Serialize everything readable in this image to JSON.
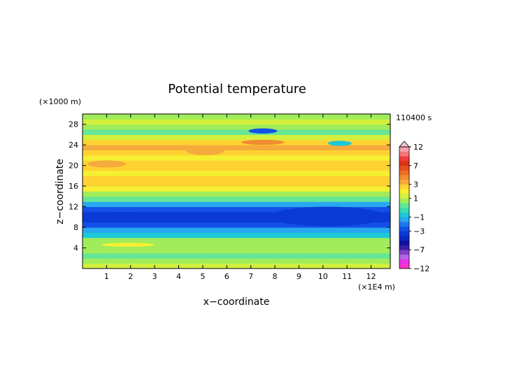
{
  "chart_data": {
    "type": "heatmap",
    "title": "Potential temperature",
    "xlabel": "x−coordinate",
    "ylabel": "z−coordinate",
    "x_unit": "(×1E4 m)",
    "y_unit": "(×1000 m)",
    "time_label": "110400 s",
    "xlim": [
      0,
      12.8
    ],
    "ylim": [
      0,
      30
    ],
    "x_ticks": [
      1,
      2,
      3,
      4,
      5,
      6,
      7,
      8,
      9,
      10,
      11,
      12
    ],
    "y_ticks": [
      4,
      8,
      12,
      16,
      20,
      24,
      28
    ],
    "colorbar": {
      "tick_labels": [
        "12",
        "7",
        "3",
        "1",
        "−1",
        "−3",
        "−7",
        "−12"
      ],
      "tick_values": [
        12,
        7,
        3,
        1,
        -1,
        -3,
        -7,
        -12
      ],
      "levels": [
        -12,
        -10,
        -9,
        -8,
        -7,
        -6,
        -5,
        -4,
        -3,
        -2,
        -1.5,
        -1,
        -0.5,
        0,
        0.5,
        1,
        1.5,
        2,
        3,
        4,
        5,
        6,
        7,
        8,
        9,
        10,
        12
      ],
      "colors": [
        "#ff33cc",
        "#e633e6",
        "#b266e6",
        "#8040c8",
        "#3c1ea8",
        "#1010a0",
        "#0828c0",
        "#0a3ad6",
        "#1450e8",
        "#1e78f0",
        "#28a8f0",
        "#1ec8d8",
        "#3cdcb4",
        "#64e696",
        "#a0ec5a",
        "#d2f03c",
        "#f5f032",
        "#ffd232",
        "#f5aa3c",
        "#f08c32",
        "#eb6e23",
        "#e6501e",
        "#dc3214",
        "#f03c3c",
        "#f07878",
        "#f5a0aa"
      ]
    },
    "rows": [
      {
        "z": [
          0,
          1
        ],
        "value": 1.2
      },
      {
        "z": [
          1,
          2
        ],
        "value": 0.5
      },
      {
        "z": [
          2,
          3
        ],
        "value": 0.3
      },
      {
        "z": [
          3,
          4
        ],
        "value": 0.6
      },
      {
        "z": [
          4,
          5
        ],
        "value": 0.9
      },
      {
        "z": [
          5,
          6
        ],
        "value": 0.6
      },
      {
        "z": [
          6,
          7
        ],
        "value": -0.6
      },
      {
        "z": [
          7,
          8
        ],
        "value": -1.3
      },
      {
        "z": [
          8,
          9
        ],
        "value": -2.6
      },
      {
        "z": [
          9,
          10
        ],
        "value": -3.3
      },
      {
        "z": [
          10,
          11
        ],
        "value": -3.3
      },
      {
        "z": [
          11,
          12
        ],
        "value": -2.6
      },
      {
        "z": [
          12,
          13
        ],
        "value": -1.2
      },
      {
        "z": [
          13,
          14
        ],
        "value": 0.2
      },
      {
        "z": [
          14,
          15
        ],
        "value": 0.9
      },
      {
        "z": [
          15,
          16
        ],
        "value": 1.6
      },
      {
        "z": [
          16,
          17
        ],
        "value": 2.2
      },
      {
        "z": [
          17,
          18
        ],
        "value": 2.0
      },
      {
        "z": [
          18,
          19
        ],
        "value": 1.5
      },
      {
        "z": [
          19,
          20
        ],
        "value": 2.1
      },
      {
        "z": [
          20,
          21
        ],
        "value": 2.5
      },
      {
        "z": [
          21,
          22
        ],
        "value": 1.8
      },
      {
        "z": [
          22,
          23
        ],
        "value": 2.6
      },
      {
        "z": [
          23,
          24
        ],
        "value": 3.2
      },
      {
        "z": [
          24,
          25
        ],
        "value": 2.4
      },
      {
        "z": [
          25,
          26
        ],
        "value": 1.4
      },
      {
        "z": [
          26,
          27
        ],
        "value": 0.3
      },
      {
        "z": [
          27,
          28
        ],
        "value": 0.8
      },
      {
        "z": [
          28,
          29
        ],
        "value": 1.3
      },
      {
        "z": [
          29,
          30
        ],
        "value": 0.6
      }
    ],
    "features": [
      {
        "x": [
          6.9,
          8.1
        ],
        "z": [
          26.2,
          27.2
        ],
        "value": -2.5
      },
      {
        "x": [
          6.6,
          8.4
        ],
        "z": [
          24.0,
          25.0
        ],
        "value": 4.5
      },
      {
        "x": [
          4.3,
          5.9
        ],
        "z": [
          22.0,
          23.8
        ],
        "value": 3.6
      },
      {
        "x": [
          0.2,
          1.8
        ],
        "z": [
          19.6,
          21.0
        ],
        "value": 3.8
      },
      {
        "x": [
          10.2,
          11.2
        ],
        "z": [
          23.8,
          24.8
        ],
        "value": -0.8
      },
      {
        "x": [
          0.8,
          3.0
        ],
        "z": [
          4.2,
          5.0
        ],
        "value": 1.8
      },
      {
        "x": [
          7.8,
          12.6
        ],
        "z": [
          8.2,
          12.0
        ],
        "value": -3.6
      },
      {
        "x": [
          0.1,
          3.5
        ],
        "z": [
          9.0,
          11.0
        ],
        "value": -3.6
      }
    ]
  }
}
